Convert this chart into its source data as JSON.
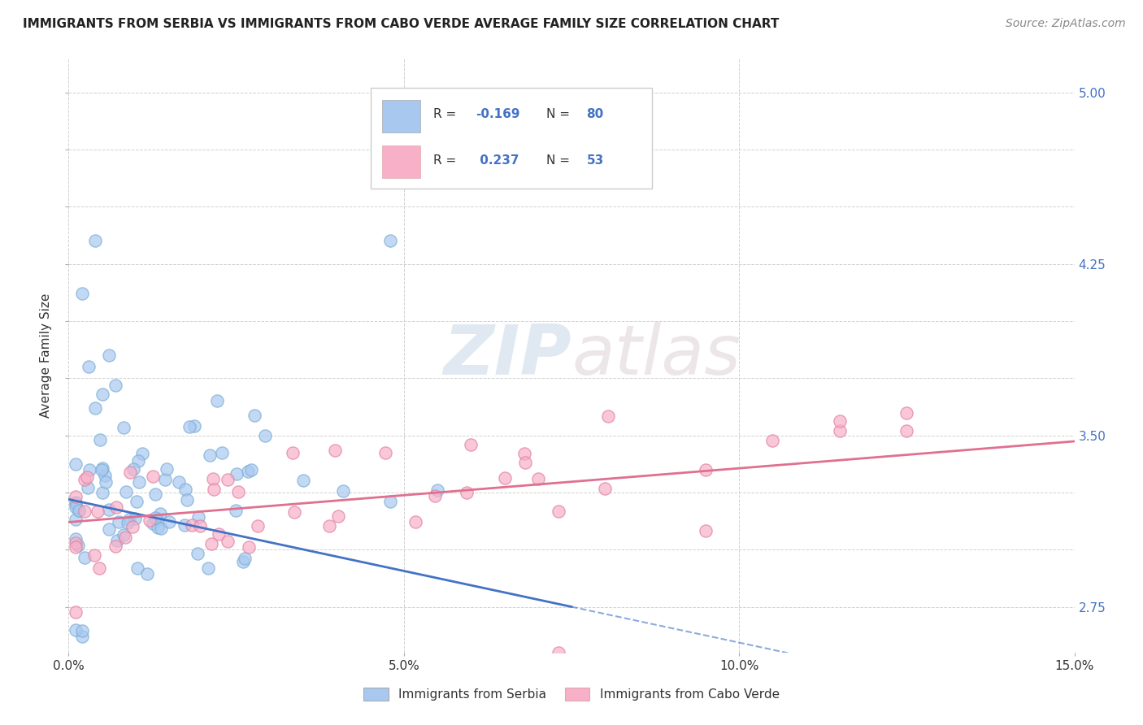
{
  "title": "IMMIGRANTS FROM SERBIA VS IMMIGRANTS FROM CABO VERDE AVERAGE FAMILY SIZE CORRELATION CHART",
  "source_text": "Source: ZipAtlas.com",
  "ylabel": "Average Family Size",
  "xlim": [
    0.0,
    0.15
  ],
  "ylim": [
    2.55,
    5.15
  ],
  "yticks": [
    2.75,
    3.0,
    3.25,
    3.5,
    3.75,
    4.0,
    4.25,
    4.5,
    4.75,
    5.0
  ],
  "xticks": [
    0.0,
    0.05,
    0.1,
    0.15
  ],
  "xtick_labels": [
    "0.0%",
    "5.0%",
    "10.0%",
    "15.0%"
  ],
  "grid_color": "#cccccc",
  "background_color": "#ffffff",
  "watermark_zip": "ZIP",
  "watermark_atlas": "atlas",
  "series1_color": "#a8c8f0",
  "series1_edge_color": "#7aaed4",
  "series1_line_color": "#4472c4",
  "series2_color": "#f8b0c8",
  "series2_edge_color": "#e080a0",
  "series2_line_color": "#e07090",
  "legend_R1": "-0.169",
  "legend_N1": "80",
  "legend_R2": "0.237",
  "legend_N2": "53",
  "blue_value_color": "#4472c4",
  "label_color": "#333333"
}
